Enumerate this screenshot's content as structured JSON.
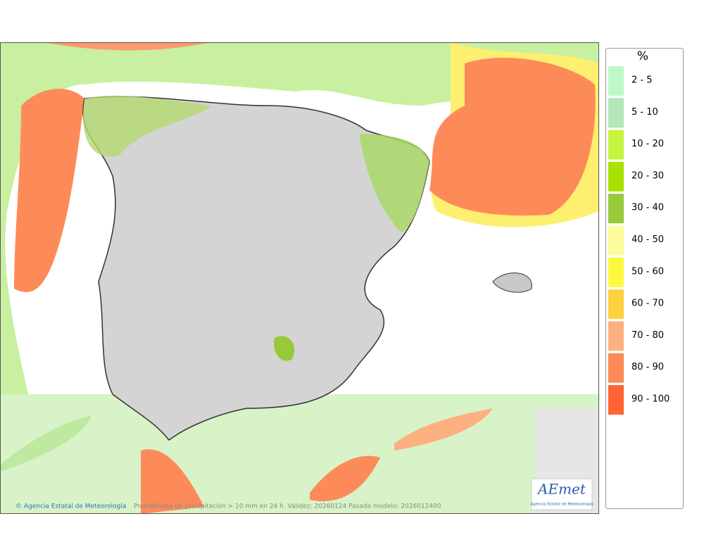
{
  "legend": {
    "title": "%",
    "items": [
      {
        "label": "2 - 5",
        "color": "#bff7c6"
      },
      {
        "label": "5 - 10",
        "color": "#b4e8b8"
      },
      {
        "label": "10 - 20",
        "color": "#c6f53f"
      },
      {
        "label": "20 - 30",
        "color": "#a8e200"
      },
      {
        "label": "30 - 40",
        "color": "#98c93a"
      },
      {
        "label": "40 - 50",
        "color": "#fdfb9c"
      },
      {
        "label": "50 - 60",
        "color": "#fdf93f"
      },
      {
        "label": "60 - 70",
        "color": "#ffd03e"
      },
      {
        "label": "70 - 80",
        "color": "#fdb07f"
      },
      {
        "label": "80 - 90",
        "color": "#fd8b5a"
      },
      {
        "label": "90 - 100",
        "color": "#fe6436"
      }
    ]
  },
  "footer": {
    "credit": "© Agencia Estatal de Meteorología",
    "caption": "Probabilidad de precipitación > 10 mm en 24 h. Validez: 20260124 Pasada modelo: 2026012400"
  },
  "logo": {
    "name": "AEmet",
    "subtitle": "Agencia Estatal de Meteorología"
  }
}
